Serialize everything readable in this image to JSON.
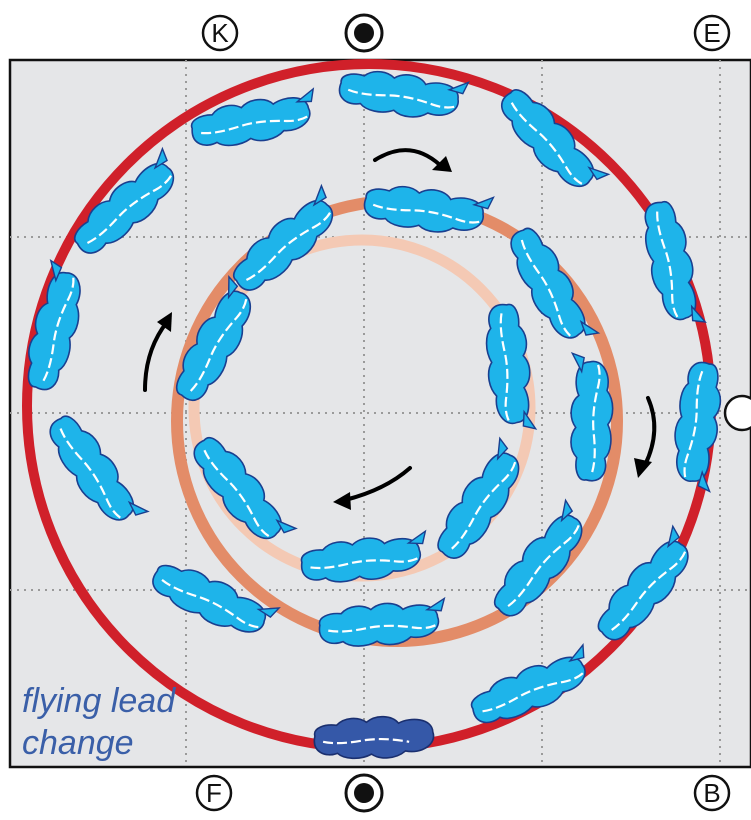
{
  "markers": {
    "top_left": "K",
    "top_right": "E",
    "bottom_left": "F",
    "bottom_right": "B"
  },
  "caption": {
    "line1": "flying lead",
    "line2": "change"
  },
  "colors": {
    "arena_fill": "#e5e6e8",
    "grid": "#9a9a9a",
    "outer_circle": "#d0202a",
    "middle_circle": "#e38c68",
    "inner_circle": "#f4c9b4",
    "hoof_light": "#1eb4ea",
    "hoof_dark": "#3558a8",
    "hoof_outline": "#1a3f8f",
    "arrow": "#000000",
    "caption": "#3a5fa8"
  },
  "icons": [
    "letter-marker-icon",
    "center-dot-marker-icon",
    "direction-arrow-icon",
    "hoofprint-icon"
  ]
}
